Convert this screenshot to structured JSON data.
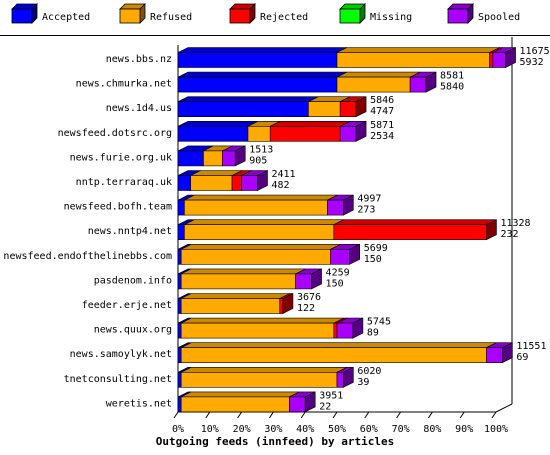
{
  "chart_data": {
    "type": "bar",
    "orientation": "horizontal",
    "stacked": true,
    "three_d": true,
    "title": "Outgoing feeds (innfeed) by articles",
    "xlabel": "Outgoing feeds (innfeed) by articles",
    "ylabel": "",
    "xlim": [
      0,
      100
    ],
    "x_unit": "%",
    "x_ticks": [
      "0%",
      "10%",
      "20%",
      "30%",
      "40%",
      "50%",
      "60%",
      "70%",
      "80%",
      "90%",
      "100%"
    ],
    "legend_position": "top",
    "series": [
      {
        "name": "Accepted",
        "color": "#0000ff"
      },
      {
        "name": "Refused",
        "color": "#ffaa00"
      },
      {
        "name": "Rejected",
        "color": "#ff0000"
      },
      {
        "name": "Missing",
        "color": "#00ff00"
      },
      {
        "name": "Spooled",
        "color": "#aa00ff"
      }
    ],
    "categories": [
      "news.bbs.nz",
      "news.chmurka.net",
      "news.1d4.us",
      "newsfeed.dotsrc.org",
      "news.furie.org.uk",
      "nntp.terraraq.uk",
      "newsfeed.bofh.team",
      "news.nntp4.net",
      "newsfeed.endofthelinebbs.com",
      "pasdenom.info",
      "feeder.erje.net",
      "news.quux.org",
      "news.samoylyk.net",
      "tnetconsulting.net",
      "weretis.net"
    ],
    "segments_percent": [
      [
        50,
        48,
        1,
        0,
        4
      ],
      [
        50,
        23,
        0,
        0,
        5
      ],
      [
        41,
        10,
        5,
        0,
        0
      ],
      [
        22,
        7,
        22,
        0,
        5
      ],
      [
        8,
        6,
        0,
        0,
        4
      ],
      [
        4,
        13,
        3,
        0,
        5
      ],
      [
        2,
        45,
        0,
        0,
        5
      ],
      [
        2,
        47,
        48,
        0,
        0
      ],
      [
        1,
        47,
        0,
        0,
        6
      ],
      [
        1,
        36,
        0,
        0,
        5
      ],
      [
        1,
        31,
        1,
        0,
        0
      ],
      [
        1,
        48,
        1,
        0,
        5
      ],
      [
        1,
        96,
        0,
        0,
        5
      ],
      [
        1,
        49,
        0,
        0,
        2
      ],
      [
        1,
        34,
        0,
        0,
        5
      ]
    ],
    "value_labels": [
      [
        "11675",
        "5932"
      ],
      [
        "8581",
        "5840"
      ],
      [
        "5846",
        "4747"
      ],
      [
        "5871",
        "2534"
      ],
      [
        "1513",
        "905"
      ],
      [
        "2411",
        "482"
      ],
      [
        "4997",
        "273"
      ],
      [
        "11328",
        "232"
      ],
      [
        "5699",
        "150"
      ],
      [
        "4259",
        "150"
      ],
      [
        "3676",
        "122"
      ],
      [
        "5745",
        "89"
      ],
      [
        "11551",
        "69"
      ],
      [
        "6020",
        "39"
      ],
      [
        "3951",
        "22"
      ]
    ]
  }
}
